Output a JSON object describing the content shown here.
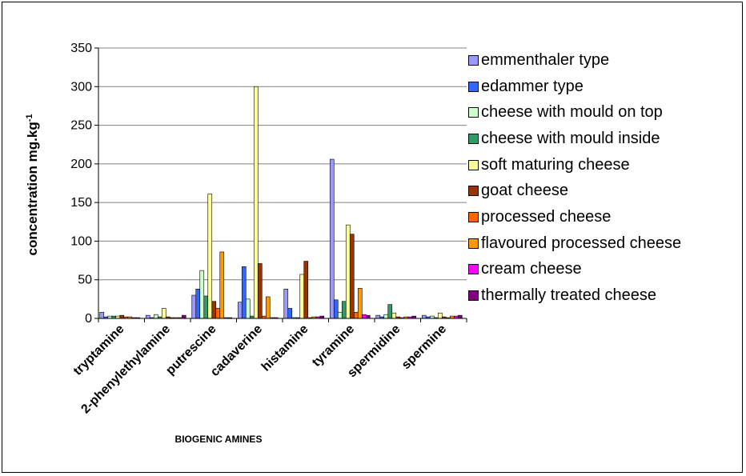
{
  "chart_data": {
    "type": "bar",
    "title": "",
    "xlabel": "BIOGENIC AMINES",
    "ylabel": "concentration mg.kg",
    "ylabel_superscript": "-1",
    "ylim": [
      0,
      350
    ],
    "yticks": [
      "0",
      "50",
      "100",
      "150",
      "200",
      "250",
      "300",
      "350"
    ],
    "grid": true,
    "legend_position": "right",
    "categories": [
      "tryptamine",
      "2-phenylethylamine",
      "putrescine",
      "cadaverine",
      "histamine",
      "tyramine",
      "spermidine",
      "spermine"
    ],
    "series": [
      {
        "name": "emmenthaler type",
        "color": "#9999ff",
        "values": [
          8,
          4,
          30,
          21,
          38,
          206,
          4,
          4
        ]
      },
      {
        "name": "edammer type",
        "color": "#3366ff",
        "values": [
          2,
          1,
          38,
          67,
          13,
          24,
          2,
          2
        ]
      },
      {
        "name": "cheese with mould on top",
        "color": "#ccffcc",
        "values": [
          3,
          5,
          62,
          25,
          1,
          8,
          5,
          3
        ]
      },
      {
        "name": "cheese with mould inside",
        "color": "#339966",
        "values": [
          3,
          2,
          29,
          3,
          1,
          22,
          18,
          1
        ]
      },
      {
        "name": "soft maturing cheese",
        "color": "#ffff99",
        "values": [
          3,
          13,
          161,
          300,
          57,
          121,
          7,
          7
        ]
      },
      {
        "name": "goat cheese",
        "color": "#993300",
        "values": [
          4,
          2,
          22,
          71,
          74,
          109,
          2,
          2
        ]
      },
      {
        "name": "processed cheese",
        "color": "#ff6600",
        "values": [
          2,
          1,
          13,
          3,
          1,
          8,
          1,
          1
        ]
      },
      {
        "name": "flavoured processed cheese",
        "color": "#ff9900",
        "values": [
          2,
          1,
          86,
          28,
          2,
          39,
          2,
          3
        ]
      },
      {
        "name": "cream cheese",
        "color": "#ff00ff",
        "values": [
          1,
          1,
          1,
          1,
          2,
          5,
          2,
          3
        ]
      },
      {
        "name": "thermally treated cheese",
        "color": "#800080",
        "values": [
          1,
          4,
          1,
          1,
          3,
          4,
          3,
          4
        ]
      }
    ]
  }
}
